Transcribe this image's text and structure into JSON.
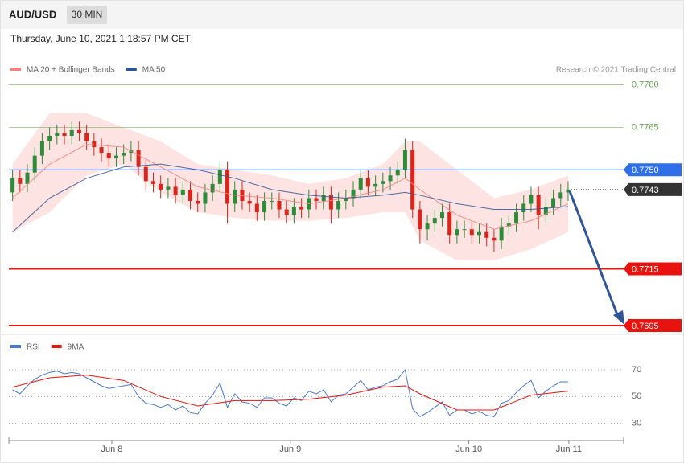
{
  "header": {
    "symbol": "AUD/USD",
    "timeframe": "30 MIN",
    "timestamp": "Thursday, June 10, 2021 1:18:57 PM CET",
    "credit": "Research © 2021 Trading Central"
  },
  "chart_data": [
    {
      "type": "candlestick",
      "xlim": [
        -0.5,
        82.5
      ],
      "ylim": [
        0.7693,
        0.7783
      ],
      "up_color": "#2e8b3a",
      "down_color": "#d9261c",
      "open": [
        0.7742,
        0.7747,
        0.7745,
        0.7749,
        0.7755,
        0.776,
        0.7762,
        0.7763,
        0.7762,
        0.7764,
        0.7763,
        0.776,
        0.7758,
        0.7756,
        0.7754,
        0.7755,
        0.7756,
        0.7757,
        0.7751,
        0.7746,
        0.7745,
        0.7743,
        0.7744,
        0.7741,
        0.7743,
        0.7739,
        0.7738,
        0.7742,
        0.7745,
        0.775,
        0.7738,
        0.7743,
        0.7739,
        0.7738,
        0.7735,
        0.7739,
        0.7739,
        0.7736,
        0.7734,
        0.7737,
        0.7736,
        0.774,
        0.7739,
        0.7741,
        0.7736,
        0.7739,
        0.774,
        0.7743,
        0.7747,
        0.7744,
        0.7745,
        0.7746,
        0.7748,
        0.775,
        0.7757,
        0.7736,
        0.7729,
        0.7731,
        0.7733,
        0.7735,
        0.7727,
        0.7729,
        0.7729,
        0.7727,
        0.7728,
        0.7726,
        0.7725,
        0.773,
        0.7731,
        0.7735,
        0.7738,
        0.7741,
        0.7734,
        0.7737,
        0.774,
        0.7742
      ],
      "high": [
        0.775,
        0.775,
        0.7752,
        0.7758,
        0.7763,
        0.7765,
        0.7766,
        0.7766,
        0.7767,
        0.7767,
        0.7766,
        0.7763,
        0.7761,
        0.7759,
        0.7758,
        0.7759,
        0.776,
        0.776,
        0.7754,
        0.7749,
        0.7748,
        0.7747,
        0.7747,
        0.7746,
        0.7746,
        0.7742,
        0.7745,
        0.7748,
        0.7753,
        0.7753,
        0.7746,
        0.7746,
        0.7742,
        0.7741,
        0.7742,
        0.7742,
        0.7742,
        0.7739,
        0.774,
        0.774,
        0.7743,
        0.7743,
        0.7744,
        0.7744,
        0.7742,
        0.7743,
        0.7746,
        0.775,
        0.775,
        0.7748,
        0.7749,
        0.7751,
        0.7753,
        0.7761,
        0.776,
        0.7739,
        0.7734,
        0.7736,
        0.7738,
        0.7738,
        0.7732,
        0.7732,
        0.7732,
        0.7731,
        0.7731,
        0.7729,
        0.7733,
        0.7734,
        0.7738,
        0.7741,
        0.7744,
        0.7744,
        0.774,
        0.7743,
        0.7745,
        0.7746
      ],
      "low": [
        0.7739,
        0.7742,
        0.7742,
        0.7746,
        0.7752,
        0.7757,
        0.7759,
        0.7759,
        0.7759,
        0.776,
        0.7757,
        0.7755,
        0.7753,
        0.7751,
        0.7751,
        0.7752,
        0.7753,
        0.7748,
        0.7743,
        0.7742,
        0.774,
        0.774,
        0.7738,
        0.7738,
        0.7736,
        0.7735,
        0.7735,
        0.7739,
        0.7742,
        0.7731,
        0.7735,
        0.7736,
        0.7735,
        0.7732,
        0.7732,
        0.7736,
        0.7733,
        0.7731,
        0.7731,
        0.7733,
        0.7733,
        0.7736,
        0.7736,
        0.7731,
        0.7733,
        0.7736,
        0.7737,
        0.774,
        0.7741,
        0.7741,
        0.7742,
        0.7743,
        0.7745,
        0.7747,
        0.7733,
        0.7724,
        0.7725,
        0.7728,
        0.773,
        0.7724,
        0.7724,
        0.7726,
        0.7724,
        0.7724,
        0.7723,
        0.7721,
        0.7722,
        0.7727,
        0.7728,
        0.7732,
        0.7735,
        0.7729,
        0.7731,
        0.7734,
        0.7737,
        0.7739
      ],
      "close": [
        0.7747,
        0.7745,
        0.7749,
        0.7755,
        0.776,
        0.7762,
        0.7763,
        0.7762,
        0.7764,
        0.7763,
        0.776,
        0.7758,
        0.7756,
        0.7754,
        0.7755,
        0.7756,
        0.7757,
        0.7751,
        0.7746,
        0.7745,
        0.7743,
        0.7744,
        0.7741,
        0.7743,
        0.7739,
        0.7738,
        0.7742,
        0.7745,
        0.775,
        0.7738,
        0.7743,
        0.7739,
        0.7738,
        0.7735,
        0.7739,
        0.7739,
        0.7736,
        0.7734,
        0.7737,
        0.7736,
        0.774,
        0.7739,
        0.7741,
        0.7736,
        0.7739,
        0.774,
        0.7743,
        0.7747,
        0.7744,
        0.7745,
        0.7746,
        0.7748,
        0.775,
        0.7757,
        0.7736,
        0.7729,
        0.7731,
        0.7733,
        0.7735,
        0.7727,
        0.7729,
        0.7729,
        0.7727,
        0.7728,
        0.7726,
        0.7725,
        0.773,
        0.7731,
        0.7735,
        0.7738,
        0.7741,
        0.7734,
        0.7737,
        0.774,
        0.7742,
        0.7743
      ],
      "indicator_x": [
        0,
        5,
        10,
        15,
        20,
        25,
        30,
        35,
        40,
        45,
        50,
        53,
        55,
        60,
        65,
        70,
        75
      ],
      "series": [
        {
          "name": "MA 20 + Bollinger Bands",
          "color": "#f4837d",
          "band_color": "#fde3e1",
          "values": [
            0.774,
            0.7752,
            0.7759,
            0.7758,
            0.7751,
            0.7744,
            0.7741,
            0.774,
            0.7738,
            0.774,
            0.7743,
            0.7747,
            0.7743,
            0.7734,
            0.7729,
            0.7732,
            0.7738
          ],
          "upper": [
            0.7752,
            0.777,
            0.777,
            0.7765,
            0.776,
            0.7752,
            0.775,
            0.7748,
            0.7745,
            0.7747,
            0.7752,
            0.776,
            0.776,
            0.775,
            0.774,
            0.7743,
            0.7748
          ],
          "lower": [
            0.7728,
            0.7735,
            0.7748,
            0.7752,
            0.7742,
            0.7735,
            0.7733,
            0.7732,
            0.7732,
            0.7733,
            0.7735,
            0.7735,
            0.7725,
            0.7718,
            0.7718,
            0.7722,
            0.7728
          ]
        },
        {
          "name": "MA 50",
          "color": "#2f5597",
          "values": [
            0.7728,
            0.774,
            0.7747,
            0.7751,
            0.7752,
            0.775,
            0.7747,
            0.7743,
            0.7741,
            0.774,
            0.7741,
            0.7742,
            0.7741,
            0.7738,
            0.7736,
            0.7736,
            0.7737
          ]
        }
      ],
      "levels": [
        {
          "value": 0.778,
          "label": "0.7780",
          "color": "#6aa84f",
          "box": false
        },
        {
          "value": 0.7765,
          "color": "#6aa84f",
          "box": false
        },
        {
          "value": 0.775,
          "label": "0.7750",
          "color": "#2f6fe8",
          "box": true
        },
        {
          "value": 0.7715,
          "color": "#e8130e",
          "box": true
        },
        {
          "value": 0.7695,
          "color": "#e8130e",
          "box": true
        }
      ],
      "last_price": {
        "value": 0.7743,
        "color": "#333333"
      }
    },
    {
      "type": "line",
      "xlim": [
        -0.5,
        82.5
      ],
      "ylim": [
        22,
        79
      ],
      "yticks": [
        30,
        50,
        70
      ],
      "xticks": [
        {
          "value": 13.4,
          "label": "Jun 8"
        },
        {
          "value": 37.5,
          "label": "Jun 9"
        },
        {
          "value": 61.6,
          "label": "Jun 10"
        },
        {
          "value": 75.1,
          "label": "Jun 11"
        }
      ],
      "series": [
        {
          "name": "RSI",
          "color": "#4a78d0",
          "values": [
            55,
            52,
            58,
            63,
            66,
            68,
            69,
            67,
            68,
            67,
            64,
            61,
            58,
            56,
            57,
            58,
            59,
            50,
            45,
            44,
            42,
            44,
            40,
            43,
            38,
            37,
            45,
            51,
            60,
            42,
            52,
            46,
            45,
            42,
            49,
            49,
            45,
            43,
            49,
            47,
            54,
            52,
            55,
            46,
            51,
            52,
            57,
            62,
            55,
            57,
            58,
            61,
            63,
            70,
            41,
            35,
            38,
            42,
            46,
            36,
            40,
            40,
            37,
            39,
            36,
            35,
            45,
            47,
            53,
            58,
            62,
            49,
            54,
            58,
            61,
            61
          ]
        },
        {
          "name": "9MA",
          "color": "#e8130e",
          "x": [
            0,
            5,
            10,
            15,
            20,
            25,
            30,
            35,
            40,
            45,
            50,
            53,
            55,
            60,
            65,
            70,
            75
          ],
          "values": [
            57,
            64,
            66,
            62,
            50,
            43,
            47,
            47,
            48,
            51,
            57,
            58,
            52,
            40,
            40,
            51,
            54
          ]
        }
      ]
    }
  ]
}
